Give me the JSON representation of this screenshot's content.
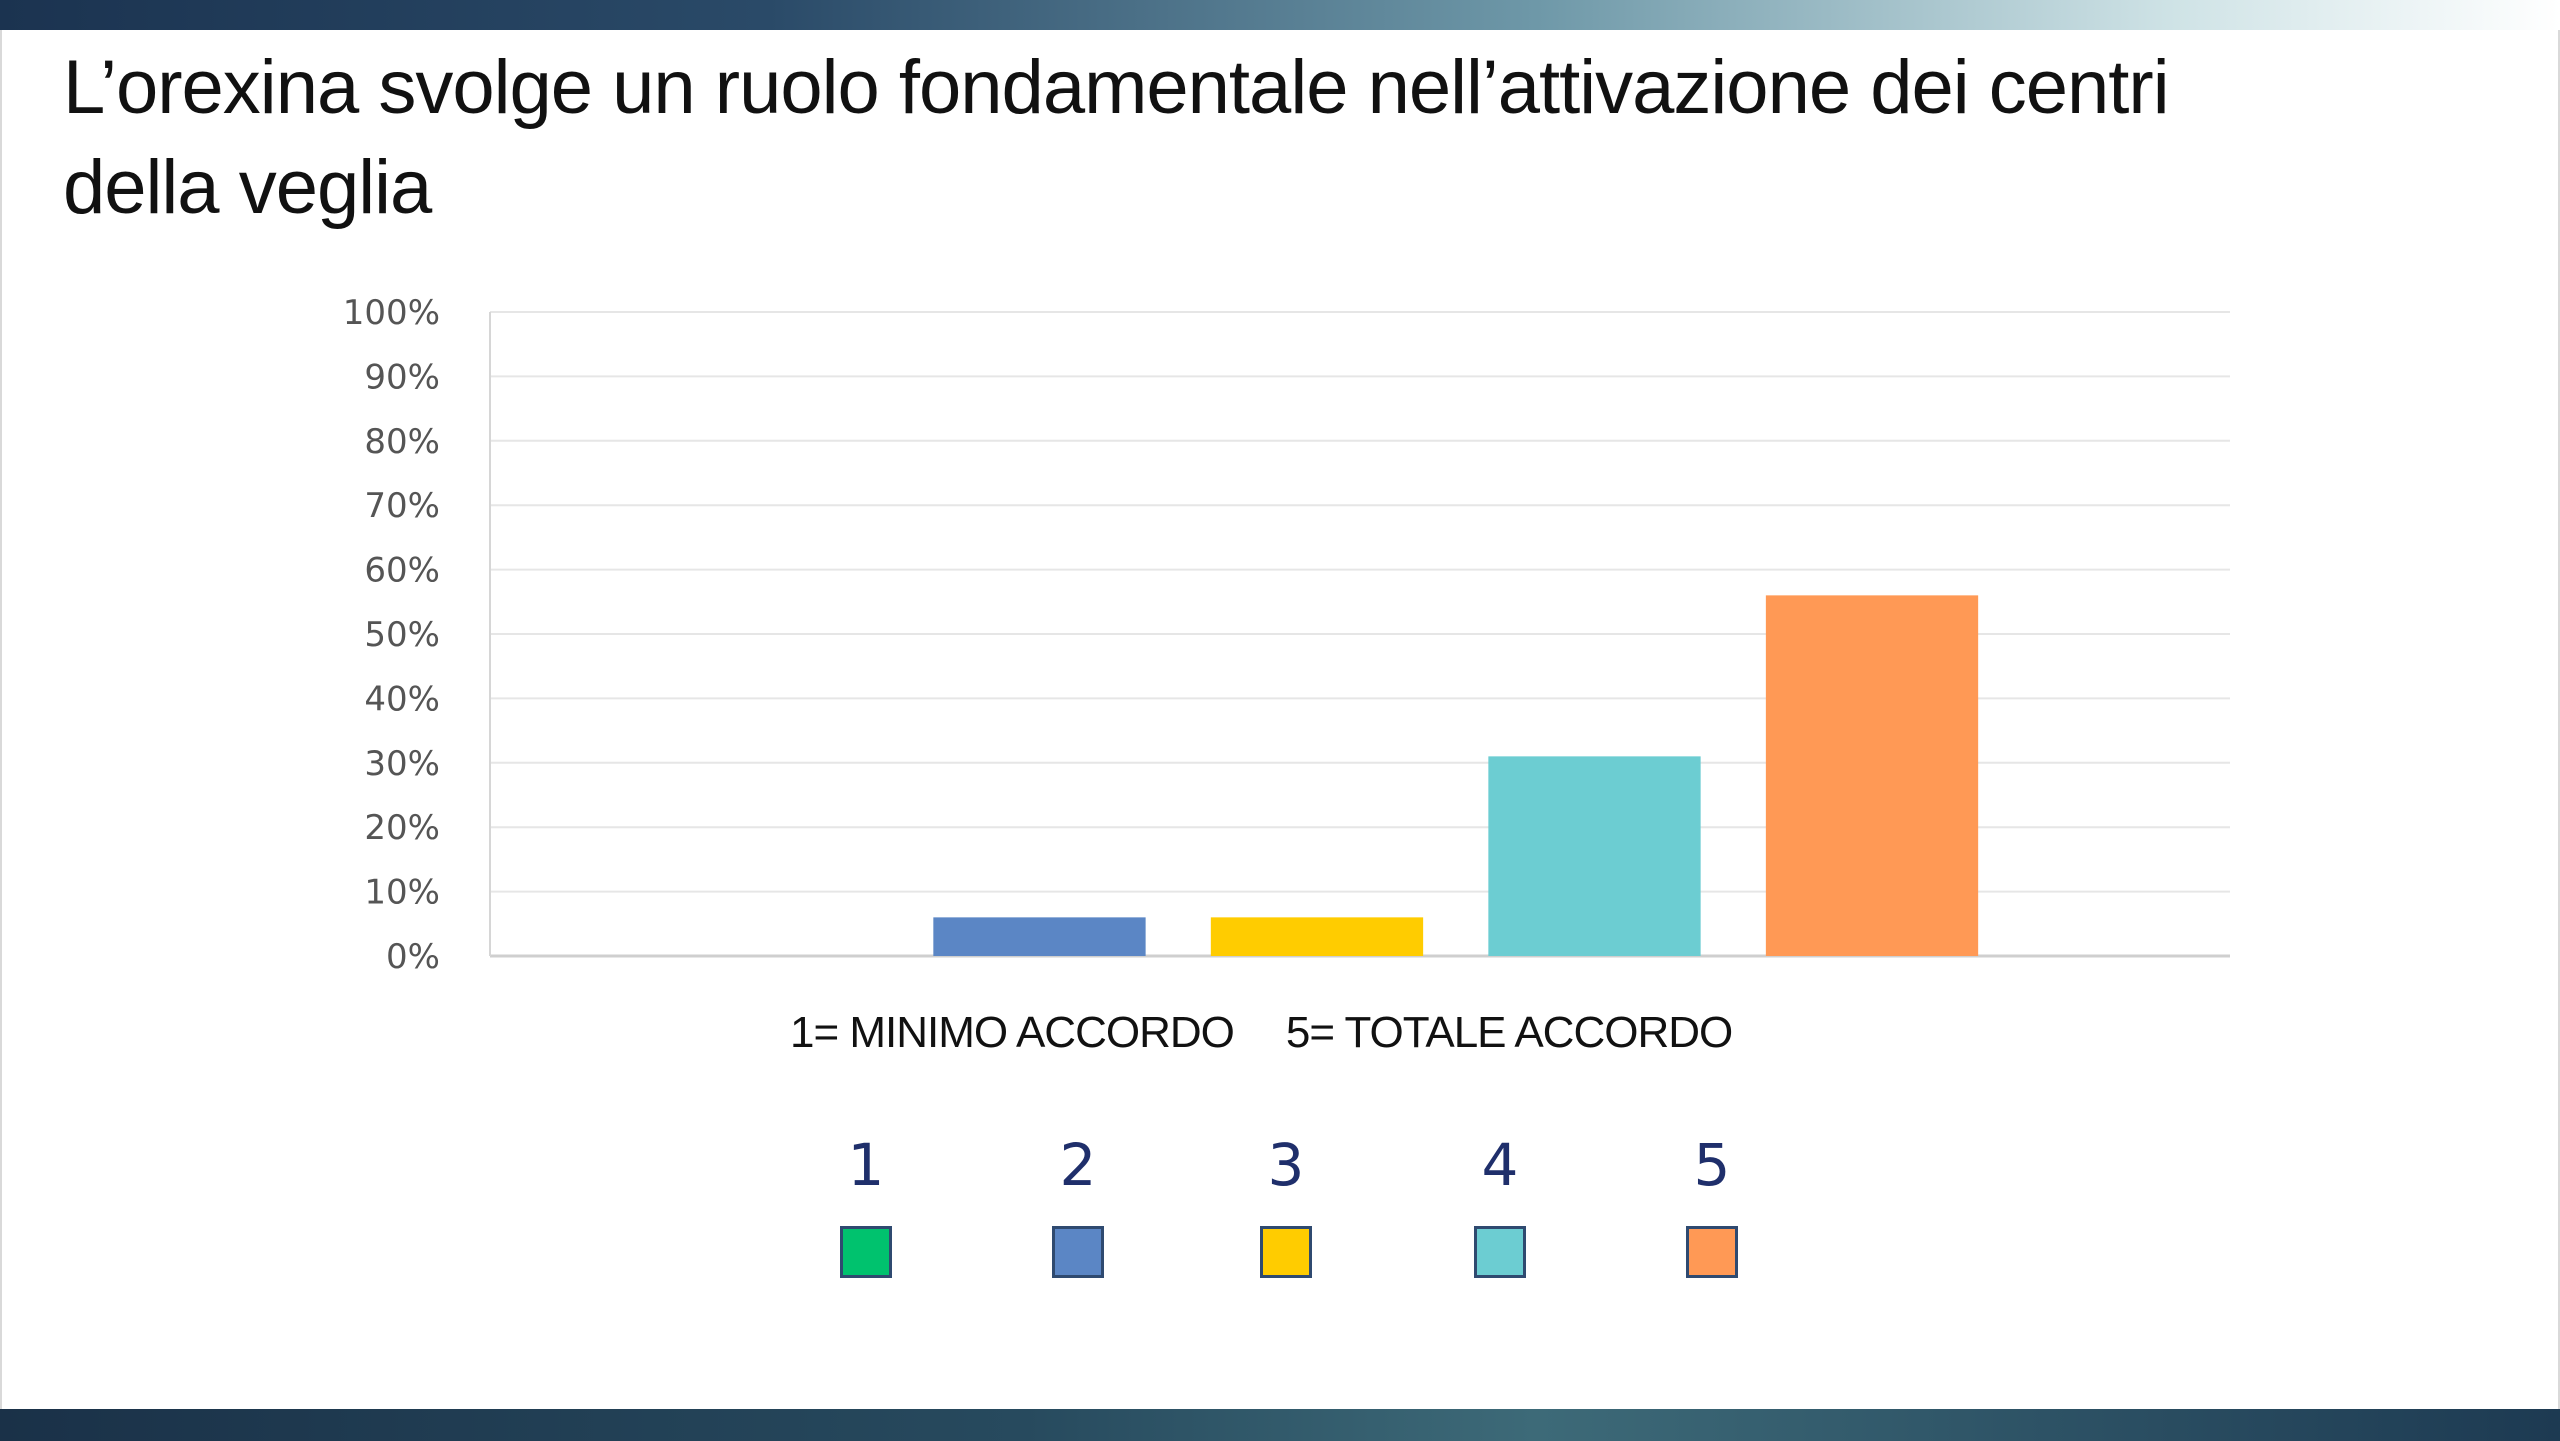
{
  "slide": {
    "title": "L’orexina svolge un ruolo fondamentale nell’attivazione dei centri della veglia"
  },
  "chart_data": {
    "type": "bar",
    "categories": [
      "1",
      "2",
      "3",
      "4",
      "5"
    ],
    "values": [
      0,
      6,
      6,
      31,
      56
    ],
    "colors": [
      "#00c26e",
      "#5b86c5",
      "#ffcc00",
      "#6ccdd2",
      "#ff9955"
    ],
    "ylim": [
      0,
      100
    ],
    "y_ticks": [
      "0%",
      "10%",
      "20%",
      "30%",
      "40%",
      "50%",
      "60%",
      "70%",
      "80%",
      "90%",
      "100%"
    ],
    "y_tick_values": [
      0,
      10,
      20,
      30,
      40,
      50,
      60,
      70,
      80,
      90,
      100
    ],
    "grid": true,
    "unit": "%"
  },
  "scale_note": {
    "min_label": "1= MINIMO ACCORDO",
    "max_label": "5= TOTALE ACCORDO"
  },
  "legend": [
    {
      "label": "1",
      "color": "#00c26e"
    },
    {
      "label": "2",
      "color": "#5b86c5"
    },
    {
      "label": "3",
      "color": "#ffcc00"
    },
    {
      "label": "4",
      "color": "#6ccdd2"
    },
    {
      "label": "5",
      "color": "#ff9955"
    }
  ]
}
